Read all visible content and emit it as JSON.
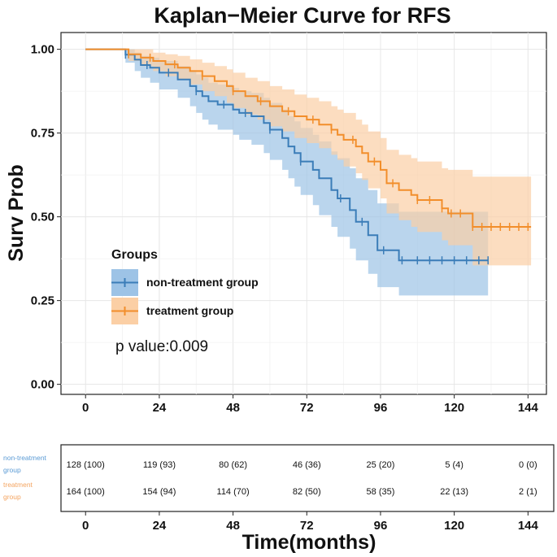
{
  "chart_data": {
    "type": "line",
    "title": "Kaplan−Meier Curve for RFS",
    "xlabel": "Time(months)",
    "ylabel": "Surv Prob",
    "xlim": [
      -8,
      150
    ],
    "ylim": [
      -0.03,
      1.05
    ],
    "x_ticks": [
      "0",
      "24",
      "48",
      "72",
      "96",
      "120",
      "144"
    ],
    "x_tick_values": [
      0,
      24,
      48,
      72,
      96,
      120,
      144
    ],
    "y_ticks": [
      "0.00",
      "0.25",
      "0.50",
      "0.75",
      "1.00"
    ],
    "y_tick_values": [
      0,
      0.25,
      0.5,
      0.75,
      1.0
    ],
    "grid": true,
    "legend_title": "Groups",
    "legend_position": "center-left",
    "p_value_text": "p value:0.009",
    "series": [
      {
        "name": "non-treatment group",
        "color": "#3B7DB8",
        "fill": "#9DC3E6",
        "steps": [
          [
            0,
            1.0
          ],
          [
            13,
            0.984
          ],
          [
            16,
            0.969
          ],
          [
            18,
            0.953
          ],
          [
            21,
            0.945
          ],
          [
            24,
            0.93
          ],
          [
            30,
            0.91
          ],
          [
            34,
            0.89
          ],
          [
            36,
            0.875
          ],
          [
            38,
            0.86
          ],
          [
            40,
            0.845
          ],
          [
            43,
            0.835
          ],
          [
            48,
            0.82
          ],
          [
            50,
            0.81
          ],
          [
            54,
            0.8
          ],
          [
            58,
            0.78
          ],
          [
            60,
            0.76
          ],
          [
            64,
            0.735
          ],
          [
            66,
            0.71
          ],
          [
            68,
            0.69
          ],
          [
            70,
            0.665
          ],
          [
            74,
            0.64
          ],
          [
            76,
            0.615
          ],
          [
            80,
            0.58
          ],
          [
            82,
            0.555
          ],
          [
            86,
            0.52
          ],
          [
            88,
            0.485
          ],
          [
            92,
            0.445
          ],
          [
            95,
            0.4
          ],
          [
            102,
            0.37
          ],
          [
            131,
            0.37
          ]
        ],
        "upper": [
          [
            0,
            1.0
          ],
          [
            13,
            1.0
          ],
          [
            16,
            0.99
          ],
          [
            18,
            0.98
          ],
          [
            21,
            0.975
          ],
          [
            24,
            0.965
          ],
          [
            30,
            0.95
          ],
          [
            34,
            0.935
          ],
          [
            36,
            0.925
          ],
          [
            38,
            0.915
          ],
          [
            40,
            0.9
          ],
          [
            43,
            0.895
          ],
          [
            48,
            0.885
          ],
          [
            50,
            0.875
          ],
          [
            54,
            0.87
          ],
          [
            58,
            0.855
          ],
          [
            60,
            0.84
          ],
          [
            64,
            0.82
          ],
          [
            66,
            0.8
          ],
          [
            68,
            0.785
          ],
          [
            70,
            0.765
          ],
          [
            74,
            0.745
          ],
          [
            76,
            0.725
          ],
          [
            80,
            0.695
          ],
          [
            82,
            0.675
          ],
          [
            86,
            0.645
          ],
          [
            88,
            0.615
          ],
          [
            92,
            0.58
          ],
          [
            95,
            0.54
          ],
          [
            102,
            0.515
          ],
          [
            131,
            0.515
          ]
        ],
        "lower": [
          [
            0,
            1.0
          ],
          [
            13,
            0.96
          ],
          [
            16,
            0.935
          ],
          [
            18,
            0.915
          ],
          [
            21,
            0.9
          ],
          [
            24,
            0.88
          ],
          [
            30,
            0.855
          ],
          [
            34,
            0.83
          ],
          [
            36,
            0.81
          ],
          [
            38,
            0.79
          ],
          [
            40,
            0.775
          ],
          [
            43,
            0.76
          ],
          [
            48,
            0.745
          ],
          [
            50,
            0.73
          ],
          [
            54,
            0.715
          ],
          [
            58,
            0.69
          ],
          [
            60,
            0.67
          ],
          [
            64,
            0.64
          ],
          [
            66,
            0.615
          ],
          [
            68,
            0.59
          ],
          [
            70,
            0.565
          ],
          [
            74,
            0.535
          ],
          [
            76,
            0.505
          ],
          [
            80,
            0.47
          ],
          [
            82,
            0.44
          ],
          [
            86,
            0.405
          ],
          [
            88,
            0.37
          ],
          [
            92,
            0.33
          ],
          [
            95,
            0.29
          ],
          [
            102,
            0.265
          ],
          [
            131,
            0.265
          ]
        ],
        "censor_times": [
          13,
          20,
          27,
          36,
          45,
          52,
          60,
          70,
          83,
          90,
          97,
          103,
          108,
          112,
          116,
          120,
          124,
          128,
          131
        ]
      },
      {
        "name": "treatment group",
        "color": "#F28E2B",
        "fill": "#FBCFA5",
        "steps": [
          [
            0,
            1.0
          ],
          [
            14,
            0.985
          ],
          [
            18,
            0.975
          ],
          [
            22,
            0.965
          ],
          [
            26,
            0.955
          ],
          [
            30,
            0.945
          ],
          [
            34,
            0.935
          ],
          [
            38,
            0.92
          ],
          [
            42,
            0.905
          ],
          [
            46,
            0.89
          ],
          [
            48,
            0.875
          ],
          [
            52,
            0.86
          ],
          [
            56,
            0.845
          ],
          [
            60,
            0.83
          ],
          [
            64,
            0.815
          ],
          [
            68,
            0.8
          ],
          [
            72,
            0.79
          ],
          [
            76,
            0.775
          ],
          [
            80,
            0.76
          ],
          [
            82,
            0.745
          ],
          [
            84,
            0.73
          ],
          [
            88,
            0.71
          ],
          [
            90,
            0.69
          ],
          [
            92,
            0.665
          ],
          [
            96,
            0.64
          ],
          [
            98,
            0.6
          ],
          [
            102,
            0.58
          ],
          [
            106,
            0.565
          ],
          [
            108,
            0.55
          ],
          [
            116,
            0.525
          ],
          [
            118,
            0.51
          ],
          [
            126,
            0.47
          ],
          [
            145,
            0.47
          ]
        ],
        "upper": [
          [
            0,
            1.0
          ],
          [
            14,
            1.0
          ],
          [
            18,
            1.0
          ],
          [
            22,
            0.99
          ],
          [
            26,
            0.985
          ],
          [
            30,
            0.98
          ],
          [
            34,
            0.97
          ],
          [
            38,
            0.96
          ],
          [
            42,
            0.95
          ],
          [
            46,
            0.94
          ],
          [
            48,
            0.93
          ],
          [
            52,
            0.915
          ],
          [
            56,
            0.905
          ],
          [
            60,
            0.89
          ],
          [
            64,
            0.88
          ],
          [
            68,
            0.865
          ],
          [
            72,
            0.855
          ],
          [
            76,
            0.845
          ],
          [
            80,
            0.83
          ],
          [
            82,
            0.82
          ],
          [
            84,
            0.81
          ],
          [
            88,
            0.79
          ],
          [
            90,
            0.775
          ],
          [
            92,
            0.755
          ],
          [
            96,
            0.735
          ],
          [
            98,
            0.7
          ],
          [
            102,
            0.685
          ],
          [
            106,
            0.675
          ],
          [
            108,
            0.665
          ],
          [
            116,
            0.645
          ],
          [
            118,
            0.64
          ],
          [
            126,
            0.62
          ],
          [
            145,
            0.62
          ]
        ],
        "lower": [
          [
            0,
            1.0
          ],
          [
            14,
            0.965
          ],
          [
            18,
            0.95
          ],
          [
            22,
            0.935
          ],
          [
            26,
            0.92
          ],
          [
            30,
            0.91
          ],
          [
            34,
            0.895
          ],
          [
            38,
            0.875
          ],
          [
            42,
            0.86
          ],
          [
            46,
            0.84
          ],
          [
            48,
            0.825
          ],
          [
            52,
            0.805
          ],
          [
            56,
            0.79
          ],
          [
            60,
            0.77
          ],
          [
            64,
            0.755
          ],
          [
            68,
            0.735
          ],
          [
            72,
            0.72
          ],
          [
            76,
            0.705
          ],
          [
            80,
            0.685
          ],
          [
            82,
            0.67
          ],
          [
            84,
            0.65
          ],
          [
            88,
            0.63
          ],
          [
            90,
            0.61
          ],
          [
            92,
            0.585
          ],
          [
            96,
            0.555
          ],
          [
            98,
            0.51
          ],
          [
            102,
            0.49
          ],
          [
            106,
            0.47
          ],
          [
            108,
            0.455
          ],
          [
            116,
            0.43
          ],
          [
            118,
            0.415
          ],
          [
            126,
            0.355
          ],
          [
            145,
            0.355
          ]
        ],
        "censor_times": [
          14,
          21,
          29,
          38,
          48,
          57,
          66,
          74,
          80,
          87,
          94,
          100,
          108,
          112,
          116,
          119,
          122,
          126,
          129,
          132,
          135,
          138,
          141,
          144
        ]
      }
    ]
  },
  "risk_table": {
    "time_points": [
      0,
      24,
      48,
      72,
      96,
      120,
      144
    ],
    "x_ticks": [
      "0",
      "24",
      "48",
      "72",
      "96",
      "120",
      "144"
    ],
    "rows": [
      {
        "label_lines": [
          "non-treatment",
          "group"
        ],
        "color": "#5B9BD5",
        "cells": [
          "128 (100)",
          "119 (93)",
          "80 (62)",
          "46 (36)",
          "25 (20)",
          "5 (4)",
          "0 (0)"
        ]
      },
      {
        "label_lines": [
          "treatment",
          "group"
        ],
        "color": "#F4A460",
        "cells": [
          "164 (100)",
          "154 (94)",
          "114 (70)",
          "82 (50)",
          "58 (35)",
          "22 (13)",
          "2 (1)"
        ]
      }
    ]
  }
}
